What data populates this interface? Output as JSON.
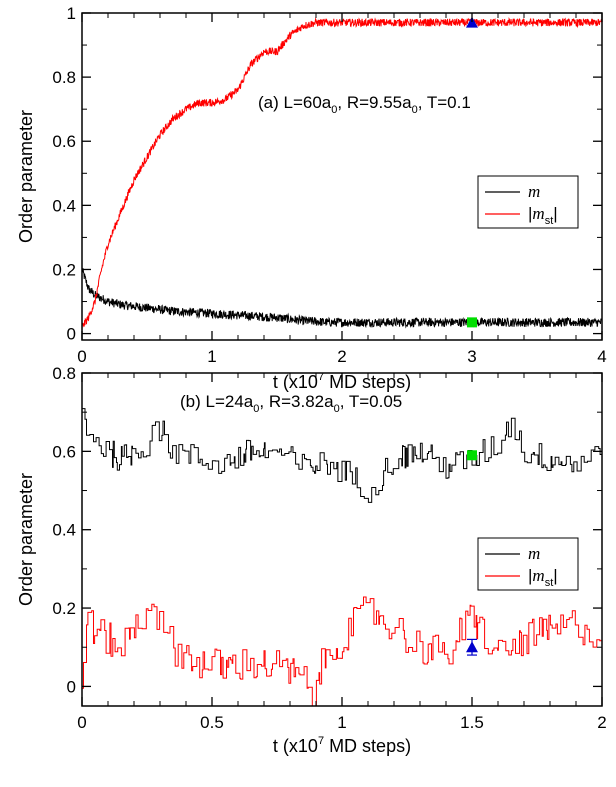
{
  "colors": {
    "m": "#000000",
    "m_st": "#ff0000",
    "blue_marker": "#0000cc",
    "green_marker": "#00dd00"
  },
  "chart_data": [
    {
      "type": "line",
      "panel": "a",
      "annotation_parts": [
        "(a) L=60a",
        "0",
        ", R=9.55a",
        "0",
        ", T=0.1"
      ],
      "xlabel_parts": [
        "t (x10",
        "7",
        " MD steps)"
      ],
      "ylabel": "Order parameter",
      "xlim": [
        0,
        4
      ],
      "ylim": [
        -0.02,
        1.0
      ],
      "xticks": [
        0,
        1,
        2,
        3,
        4
      ],
      "xtick_labels": [
        "0",
        "1",
        "2",
        "3",
        "4"
      ],
      "yticks": [
        0,
        0.2,
        0.4,
        0.6,
        0.8,
        1
      ],
      "ytick_labels": [
        "0",
        "0.2",
        "0.4",
        "0.6",
        "0.8",
        "1"
      ],
      "legend": {
        "position": "right-middle",
        "entries": [
          "m",
          "|m_st|"
        ]
      },
      "series": [
        {
          "name": "m",
          "color": "#000000",
          "x": [
            0,
            0.05,
            0.1,
            0.2,
            0.3,
            0.5,
            0.7,
            0.9,
            1.1,
            1.3,
            1.5,
            1.7,
            1.9,
            2.2,
            2.5,
            3.0,
            3.5,
            4.0
          ],
          "y": [
            0.2,
            0.14,
            0.12,
            0.1,
            0.09,
            0.08,
            0.07,
            0.065,
            0.06,
            0.055,
            0.05,
            0.04,
            0.035,
            0.035,
            0.035,
            0.035,
            0.035,
            0.035
          ]
        },
        {
          "name": "|m_st|",
          "color": "#ff0000",
          "x": [
            0,
            0.05,
            0.1,
            0.15,
            0.2,
            0.3,
            0.4,
            0.5,
            0.6,
            0.7,
            0.8,
            0.9,
            1.0,
            1.1,
            1.2,
            1.3,
            1.4,
            1.5,
            1.6,
            1.7,
            1.8,
            2.0,
            2.5,
            3.0,
            3.5,
            4.0
          ],
          "y": [
            0.02,
            0.05,
            0.1,
            0.2,
            0.28,
            0.38,
            0.48,
            0.55,
            0.62,
            0.67,
            0.7,
            0.72,
            0.72,
            0.73,
            0.76,
            0.84,
            0.88,
            0.88,
            0.93,
            0.96,
            0.97,
            0.97,
            0.97,
            0.97,
            0.97,
            0.97
          ]
        }
      ],
      "markers": [
        {
          "series": "|m_st|",
          "x": 3.0,
          "y": 0.97,
          "shape": "triangle",
          "color": "#0000cc"
        },
        {
          "series": "m",
          "x": 3.0,
          "y": 0.035,
          "shape": "square",
          "color": "#00dd00"
        }
      ]
    },
    {
      "type": "line",
      "panel": "b",
      "annotation_parts": [
        "(b) L=24a",
        "0",
        ", R=3.82a",
        "0",
        ", T=0.05"
      ],
      "xlabel_parts": [
        "t (x10",
        "7",
        " MD steps)"
      ],
      "ylabel": "Order parameter",
      "xlim": [
        0,
        2
      ],
      "ylim": [
        -0.05,
        0.8
      ],
      "xticks": [
        0,
        0.5,
        1,
        1.5,
        2
      ],
      "xtick_labels": [
        "0",
        "0.5",
        "1",
        "1.5",
        "2"
      ],
      "yticks": [
        0,
        0.2,
        0.4,
        0.6,
        0.8
      ],
      "ytick_labels": [
        "0",
        "0.2",
        "0.4",
        "0.6",
        "0.8"
      ],
      "legend": {
        "position": "right-middle",
        "entries": [
          "m",
          "|m_st|"
        ]
      },
      "series": [
        {
          "name": "m",
          "color": "#000000",
          "x": [
            0,
            0.02,
            0.05,
            0.1,
            0.15,
            0.2,
            0.25,
            0.28,
            0.35,
            0.45,
            0.55,
            0.65,
            0.75,
            0.85,
            0.95,
            1.0,
            1.05,
            1.1,
            1.2,
            1.3,
            1.4,
            1.5,
            1.6,
            1.65,
            1.7,
            1.8,
            1.9,
            2.0
          ],
          "y": [
            0.7,
            0.66,
            0.63,
            0.6,
            0.58,
            0.6,
            0.62,
            0.68,
            0.6,
            0.58,
            0.57,
            0.6,
            0.6,
            0.56,
            0.57,
            0.55,
            0.53,
            0.5,
            0.58,
            0.6,
            0.56,
            0.58,
            0.62,
            0.68,
            0.6,
            0.58,
            0.57,
            0.6
          ]
        },
        {
          "name": "|m_st|",
          "color": "#ff0000",
          "x": [
            0,
            0.01,
            0.05,
            0.1,
            0.15,
            0.2,
            0.25,
            0.27,
            0.3,
            0.35,
            0.45,
            0.55,
            0.65,
            0.75,
            0.85,
            0.88,
            0.92,
            1.0,
            1.1,
            1.2,
            1.3,
            1.4,
            1.5,
            1.6,
            1.7,
            1.8,
            1.9,
            2.0
          ],
          "y": [
            0.0,
            0.18,
            0.14,
            0.12,
            0.1,
            0.15,
            0.2,
            0.24,
            0.15,
            0.1,
            0.06,
            0.05,
            0.06,
            0.05,
            0.02,
            -0.04,
            0.05,
            0.12,
            0.2,
            0.15,
            0.1,
            0.08,
            0.18,
            0.08,
            0.12,
            0.14,
            0.16,
            0.12
          ]
        }
      ],
      "markers": [
        {
          "series": "m",
          "x": 1.5,
          "y": 0.59,
          "shape": "square",
          "color": "#00dd00"
        },
        {
          "series": "|m_st|",
          "x": 1.5,
          "y": 0.1,
          "shape": "triangle",
          "color": "#0000cc",
          "yerr": 0.02
        }
      ]
    }
  ]
}
